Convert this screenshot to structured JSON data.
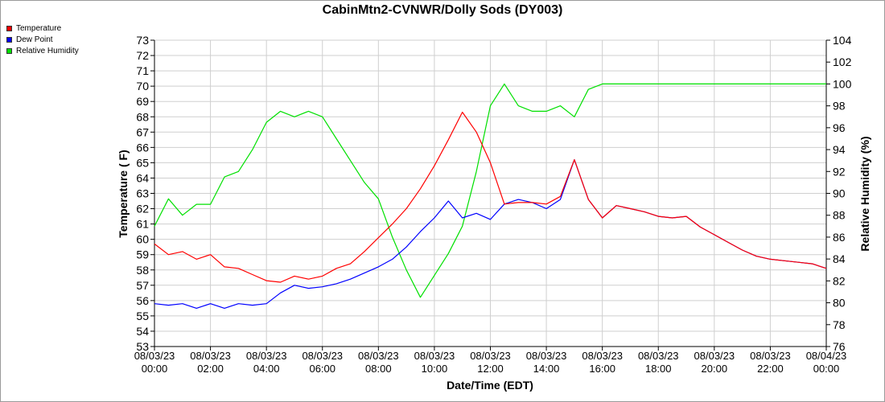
{
  "chart_data": {
    "type": "line",
    "title": "CabinMtn2-CVNWR/Dolly Sods (DY003)",
    "xlabel": "Date/Time (EDT)",
    "ylabel": "Temperature ( F)",
    "y2label": "Relative Humidity (%)",
    "ylim": [
      53,
      73
    ],
    "y2lim": [
      76,
      104
    ],
    "y_ticks": [
      "53",
      "54",
      "55",
      "56",
      "57",
      "58",
      "59",
      "60",
      "61",
      "62",
      "63",
      "64",
      "65",
      "66",
      "67",
      "68",
      "69",
      "70",
      "71",
      "72",
      "73"
    ],
    "y2_ticks": [
      "76",
      "78",
      "80",
      "82",
      "84",
      "86",
      "88",
      "90",
      "92",
      "94",
      "96",
      "98",
      "100",
      "102",
      "104"
    ],
    "x_range_hours": [
      0,
      24
    ],
    "x_ticks": [
      {
        "date": "08/03/23",
        "time": "00:00"
      },
      {
        "date": "08/03/23",
        "time": "02:00"
      },
      {
        "date": "08/03/23",
        "time": "04:00"
      },
      {
        "date": "08/03/23",
        "time": "06:00"
      },
      {
        "date": "08/03/23",
        "time": "08:00"
      },
      {
        "date": "08/03/23",
        "time": "10:00"
      },
      {
        "date": "08/03/23",
        "time": "12:00"
      },
      {
        "date": "08/03/23",
        "time": "14:00"
      },
      {
        "date": "08/03/23",
        "time": "16:00"
      },
      {
        "date": "08/03/23",
        "time": "18:00"
      },
      {
        "date": "08/03/23",
        "time": "20:00"
      },
      {
        "date": "08/03/23",
        "time": "22:00"
      },
      {
        "date": "08/04/23",
        "time": "00:00"
      }
    ],
    "grid": true,
    "legend_position": "top-left",
    "series": [
      {
        "name": "Temperature",
        "axis": "left",
        "color": "#ff0000",
        "x": [
          0,
          0.5,
          1,
          1.5,
          2,
          2.5,
          3,
          3.5,
          4,
          4.5,
          5,
          5.5,
          6,
          6.5,
          7,
          7.5,
          8,
          8.5,
          9,
          9.5,
          10,
          10.5,
          11,
          11.5,
          12,
          12.5,
          13,
          13.5,
          14,
          14.5,
          15,
          15.5,
          16,
          16.5,
          17,
          17.5,
          18,
          18.5,
          19,
          19.5,
          20,
          20.5,
          21,
          21.5,
          22,
          22.5,
          23,
          23.5,
          24
        ],
        "values": [
          59.7,
          59.0,
          59.2,
          58.7,
          59.0,
          58.2,
          58.1,
          57.7,
          57.3,
          57.2,
          57.6,
          57.4,
          57.6,
          58.1,
          58.4,
          59.2,
          60.1,
          61.0,
          62.0,
          63.3,
          64.8,
          66.5,
          68.3,
          67.0,
          65.0,
          62.3,
          62.4,
          62.4,
          62.3,
          62.8,
          65.2,
          62.6,
          61.4,
          62.2,
          62.0,
          61.8,
          61.5,
          61.4,
          61.5,
          60.8,
          60.3,
          59.8,
          59.3,
          58.9,
          58.7,
          58.6,
          58.5,
          58.4,
          58.1
        ]
      },
      {
        "name": "Dew Point",
        "axis": "left",
        "color": "#0000ff",
        "x": [
          0,
          0.5,
          1,
          1.5,
          2,
          2.5,
          3,
          3.5,
          4,
          4.5,
          5,
          5.5,
          6,
          6.5,
          7,
          7.5,
          8,
          8.5,
          9,
          9.5,
          10,
          10.5,
          11,
          11.5,
          12,
          12.5,
          13,
          13.5,
          14,
          14.5,
          15,
          15.5,
          16,
          16.5,
          17,
          17.5,
          18,
          18.5,
          19,
          19.5,
          20,
          20.5,
          21,
          21.5,
          22,
          22.5,
          23,
          23.5,
          24
        ],
        "values": [
          55.8,
          55.7,
          55.8,
          55.5,
          55.8,
          55.5,
          55.8,
          55.7,
          55.8,
          56.5,
          57.0,
          56.8,
          56.9,
          57.1,
          57.4,
          57.8,
          58.2,
          58.7,
          59.5,
          60.5,
          61.4,
          62.5,
          61.4,
          61.7,
          61.3,
          62.3,
          62.6,
          62.4,
          62.0,
          62.6,
          65.2,
          62.6,
          61.4,
          62.2,
          62.0,
          61.8,
          61.5,
          61.4,
          61.5,
          60.8,
          60.3,
          59.8,
          59.3,
          58.9,
          58.7,
          58.6,
          58.5,
          58.4,
          58.1
        ]
      },
      {
        "name": "Relative Humidity",
        "axis": "right",
        "color": "#00e000",
        "x": [
          0,
          0.5,
          1,
          1.5,
          2,
          2.5,
          3,
          3.5,
          4,
          4.5,
          5,
          5.5,
          6,
          6.5,
          7,
          7.5,
          8,
          8.5,
          9,
          9.5,
          10,
          10.5,
          11,
          11.5,
          12,
          12.5,
          13,
          13.5,
          14,
          14.5,
          15,
          15.5,
          16,
          16.5,
          17,
          17.5,
          18,
          18.5,
          19,
          19.5,
          20,
          20.5,
          21,
          21.5,
          22,
          22.5,
          23,
          23.5,
          24
        ],
        "values": [
          87,
          89.5,
          88,
          89,
          89,
          91.5,
          92,
          94,
          96.5,
          97.5,
          97,
          97.5,
          97,
          95,
          93,
          91,
          89.5,
          86,
          83,
          80.5,
          82.5,
          84.5,
          87,
          92,
          98,
          100,
          98,
          97.5,
          97.5,
          98,
          97,
          99.5,
          100,
          100,
          100,
          100,
          100,
          100,
          100,
          100,
          100,
          100,
          100,
          100,
          100,
          100,
          100,
          100,
          100
        ]
      }
    ]
  }
}
